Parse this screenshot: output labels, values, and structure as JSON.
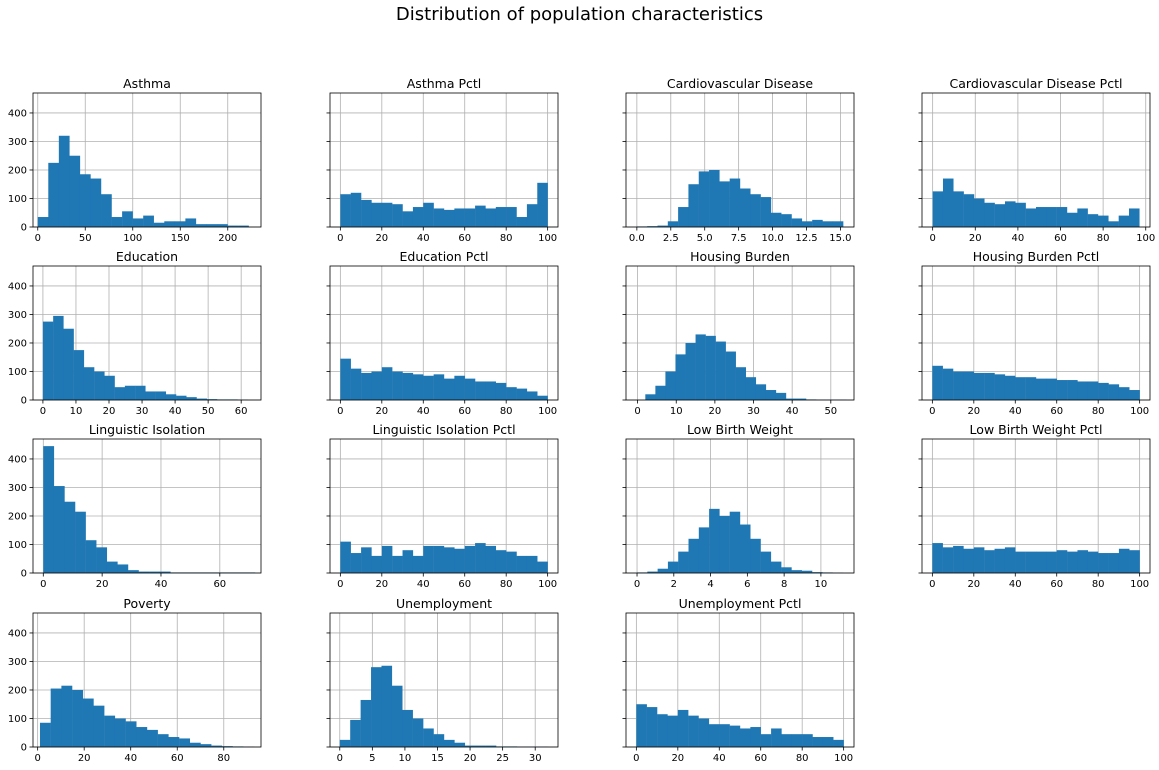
{
  "figure": {
    "title": "Distribution of population characteristics"
  },
  "style": {
    "bar_color": "#1f77b4",
    "grid_color": "#b0b0b0"
  },
  "chart_data": [
    {
      "type": "histogram",
      "title": "Asthma",
      "xlim": [
        -5,
        235
      ],
      "ylim": [
        0,
        470
      ],
      "xticks": [
        0,
        50,
        100,
        150,
        200
      ],
      "xtick_labels": [
        "0",
        "50",
        "100",
        "150",
        "200"
      ],
      "yticks": [
        0,
        100,
        200,
        300,
        400
      ],
      "ytick_labels": [
        "0",
        "100",
        "200",
        "300",
        "400"
      ],
      "grid": true,
      "bin_start": 0,
      "bin_width": 11.1,
      "counts": [
        35,
        225,
        320,
        250,
        185,
        170,
        115,
        35,
        55,
        30,
        40,
        15,
        20,
        20,
        30,
        10,
        10,
        10,
        5,
        5
      ]
    },
    {
      "type": "histogram",
      "title": "Asthma Pctl",
      "xlim": [
        -5,
        105
      ],
      "ylim": [
        0,
        470
      ],
      "xticks": [
        0,
        20,
        40,
        60,
        80,
        100
      ],
      "xtick_labels": [
        "0",
        "20",
        "40",
        "60",
        "80",
        "100"
      ],
      "yticks": [
        0,
        100,
        200,
        300,
        400
      ],
      "grid": true,
      "bin_start": 0,
      "bin_width": 5,
      "counts": [
        115,
        120,
        95,
        85,
        85,
        80,
        55,
        70,
        85,
        65,
        60,
        65,
        65,
        75,
        65,
        70,
        70,
        35,
        80,
        155
      ]
    },
    {
      "type": "histogram",
      "title": "Cardiovascular Disease",
      "xlim": [
        -0.8,
        16
      ],
      "ylim": [
        0,
        470
      ],
      "xticks": [
        0,
        2.5,
        5,
        7.5,
        10,
        12.5,
        15
      ],
      "xtick_labels": [
        "0.0",
        "2.5",
        "5.0",
        "7.5",
        "10.0",
        "12.5",
        "15.0"
      ],
      "yticks": [
        0,
        100,
        200,
        300,
        400
      ],
      "grid": true,
      "bin_start": 0,
      "bin_width": 0.76,
      "counts": [
        2,
        3,
        5,
        20,
        70,
        150,
        195,
        200,
        160,
        170,
        135,
        115,
        105,
        50,
        45,
        30,
        20,
        25,
        20,
        20
      ]
    },
    {
      "type": "histogram",
      "title": "Cardiovascular Disease Pctl",
      "xlim": [
        -5,
        102
      ],
      "ylim": [
        0,
        470
      ],
      "xticks": [
        0,
        20,
        40,
        60,
        80,
        100
      ],
      "xtick_labels": [
        "0",
        "20",
        "40",
        "60",
        "80",
        "100"
      ],
      "yticks": [
        0,
        100,
        200,
        300,
        400
      ],
      "grid": true,
      "bin_start": 0,
      "bin_width": 4.85,
      "counts": [
        125,
        170,
        125,
        115,
        100,
        85,
        80,
        90,
        85,
        65,
        70,
        70,
        70,
        50,
        65,
        45,
        40,
        20,
        40,
        65
      ]
    },
    {
      "type": "histogram",
      "title": "Education",
      "xlim": [
        -3,
        66
      ],
      "ylim": [
        0,
        470
      ],
      "xticks": [
        0,
        10,
        20,
        30,
        40,
        50,
        60
      ],
      "xtick_labels": [
        "0",
        "10",
        "20",
        "30",
        "40",
        "50",
        "60"
      ],
      "yticks": [
        0,
        100,
        200,
        300,
        400
      ],
      "ytick_labels": [
        "0",
        "100",
        "200",
        "300",
        "400"
      ],
      "grid": true,
      "bin_start": 0,
      "bin_width": 3.1,
      "counts": [
        275,
        295,
        250,
        175,
        115,
        100,
        85,
        45,
        50,
        50,
        30,
        30,
        20,
        15,
        10,
        5,
        3,
        2,
        2,
        1
      ]
    },
    {
      "type": "histogram",
      "title": "Education Pctl",
      "xlim": [
        -5,
        105
      ],
      "ylim": [
        0,
        470
      ],
      "xticks": [
        0,
        20,
        40,
        60,
        80,
        100
      ],
      "xtick_labels": [
        "0",
        "20",
        "40",
        "60",
        "80",
        "100"
      ],
      "yticks": [
        0,
        100,
        200,
        300,
        400
      ],
      "grid": true,
      "bin_start": 0,
      "bin_width": 5,
      "counts": [
        145,
        110,
        95,
        100,
        115,
        100,
        95,
        90,
        85,
        90,
        75,
        85,
        75,
        65,
        65,
        60,
        45,
        40,
        30,
        15
      ]
    },
    {
      "type": "histogram",
      "title": "Housing Burden",
      "xlim": [
        -3,
        56
      ],
      "ylim": [
        0,
        470
      ],
      "xticks": [
        0,
        10,
        20,
        30,
        40,
        50
      ],
      "xtick_labels": [
        "0",
        "10",
        "20",
        "30",
        "40",
        "50"
      ],
      "yticks": [
        0,
        100,
        200,
        300,
        400
      ],
      "grid": true,
      "bin_start": 2,
      "bin_width": 2.6,
      "counts": [
        20,
        50,
        100,
        160,
        200,
        230,
        225,
        205,
        170,
        115,
        80,
        55,
        35,
        25,
        5,
        5,
        2,
        1,
        1,
        1
      ]
    },
    {
      "type": "histogram",
      "title": "Housing Burden Pctl",
      "xlim": [
        -5,
        105
      ],
      "ylim": [
        0,
        470
      ],
      "xticks": [
        0,
        20,
        40,
        60,
        80,
        100
      ],
      "xtick_labels": [
        "0",
        "20",
        "40",
        "60",
        "80",
        "100"
      ],
      "yticks": [
        0,
        100,
        200,
        300,
        400
      ],
      "grid": true,
      "bin_start": 0,
      "bin_width": 5,
      "counts": [
        120,
        110,
        100,
        100,
        95,
        95,
        90,
        85,
        80,
        80,
        75,
        75,
        70,
        70,
        65,
        65,
        60,
        55,
        45,
        35
      ]
    },
    {
      "type": "histogram",
      "title": "Linguistic Isolation",
      "xlim": [
        -3.5,
        74
      ],
      "ylim": [
        0,
        470
      ],
      "xticks": [
        0,
        20,
        40,
        60
      ],
      "xtick_labels": [
        "0",
        "20",
        "40",
        "60"
      ],
      "yticks": [
        0,
        100,
        200,
        300,
        400
      ],
      "ytick_labels": [
        "0",
        "100",
        "200",
        "300",
        "400"
      ],
      "grid": true,
      "bin_start": 0,
      "bin_width": 3.6,
      "counts": [
        445,
        305,
        250,
        215,
        115,
        90,
        40,
        30,
        10,
        5,
        5,
        5,
        2,
        2,
        2,
        2,
        2,
        2,
        2,
        2
      ]
    },
    {
      "type": "histogram",
      "title": "Linguistic Isolation Pctl",
      "xlim": [
        -5,
        105
      ],
      "ylim": [
        0,
        470
      ],
      "xticks": [
        0,
        20,
        40,
        60,
        80,
        100
      ],
      "xtick_labels": [
        "0",
        "20",
        "40",
        "60",
        "80",
        "100"
      ],
      "yticks": [
        0,
        100,
        200,
        300,
        400
      ],
      "grid": true,
      "bin_start": 0,
      "bin_width": 5,
      "counts": [
        110,
        70,
        90,
        60,
        95,
        60,
        80,
        60,
        95,
        95,
        90,
        85,
        95,
        105,
        95,
        80,
        75,
        60,
        60,
        40
      ]
    },
    {
      "type": "histogram",
      "title": "Low Birth Weight",
      "xlim": [
        -0.6,
        11.8
      ],
      "ylim": [
        0,
        470
      ],
      "xticks": [
        0,
        2,
        4,
        6,
        8,
        10
      ],
      "xtick_labels": [
        "0",
        "2",
        "4",
        "6",
        "8",
        "10"
      ],
      "yticks": [
        0,
        100,
        200,
        300,
        400
      ],
      "grid": true,
      "bin_start": 0,
      "bin_width": 0.56,
      "counts": [
        2,
        5,
        15,
        40,
        75,
        120,
        160,
        225,
        200,
        215,
        170,
        120,
        75,
        40,
        20,
        10,
        8,
        3,
        2,
        1
      ]
    },
    {
      "type": "histogram",
      "title": "Low Birth Weight Pctl",
      "xlim": [
        -5,
        105
      ],
      "ylim": [
        0,
        470
      ],
      "xticks": [
        0,
        20,
        40,
        60,
        80,
        100
      ],
      "xtick_labels": [
        "0",
        "20",
        "40",
        "60",
        "80",
        "100"
      ],
      "yticks": [
        0,
        100,
        200,
        300,
        400
      ],
      "grid": true,
      "bin_start": 0,
      "bin_width": 5,
      "counts": [
        105,
        90,
        95,
        85,
        90,
        80,
        85,
        90,
        75,
        75,
        75,
        75,
        80,
        75,
        80,
        75,
        70,
        70,
        85,
        80
      ]
    },
    {
      "type": "histogram",
      "title": "Poverty",
      "xlim": [
        -2,
        96
      ],
      "ylim": [
        0,
        470
      ],
      "xticks": [
        0,
        20,
        40,
        60,
        80
      ],
      "xtick_labels": [
        "0",
        "20",
        "40",
        "60",
        "80"
      ],
      "yticks": [
        0,
        100,
        200,
        300,
        400
      ],
      "ytick_labels": [
        "0",
        "100",
        "200",
        "300",
        "400"
      ],
      "grid": true,
      "bin_start": 1,
      "bin_width": 4.6,
      "counts": [
        85,
        205,
        215,
        200,
        170,
        145,
        110,
        100,
        90,
        70,
        60,
        45,
        35,
        30,
        15,
        10,
        5,
        3,
        2,
        1
      ]
    },
    {
      "type": "histogram",
      "title": "Unemployment",
      "xlim": [
        -1.5,
        33.5
      ],
      "ylim": [
        0,
        470
      ],
      "xticks": [
        0,
        5,
        10,
        15,
        20,
        25,
        30
      ],
      "xtick_labels": [
        "0",
        "5",
        "10",
        "15",
        "20",
        "25",
        "30"
      ],
      "yticks": [
        0,
        100,
        200,
        300,
        400
      ],
      "grid": true,
      "bin_start": 0,
      "bin_width": 1.6,
      "counts": [
        25,
        95,
        165,
        280,
        285,
        215,
        130,
        100,
        65,
        45,
        25,
        15,
        5,
        5,
        5,
        2,
        2,
        1,
        1,
        1
      ]
    },
    {
      "type": "histogram",
      "title": "Unemployment Pctl",
      "xlim": [
        -5,
        105
      ],
      "ylim": [
        0,
        470
      ],
      "xticks": [
        0,
        20,
        40,
        60,
        80,
        100
      ],
      "xtick_labels": [
        "0",
        "20",
        "40",
        "60",
        "80",
        "100"
      ],
      "yticks": [
        0,
        100,
        200,
        300,
        400
      ],
      "grid": true,
      "bin_start": 0,
      "bin_width": 5,
      "counts": [
        150,
        140,
        115,
        110,
        130,
        110,
        100,
        80,
        80,
        75,
        65,
        70,
        45,
        65,
        45,
        45,
        45,
        35,
        35,
        25
      ]
    }
  ]
}
